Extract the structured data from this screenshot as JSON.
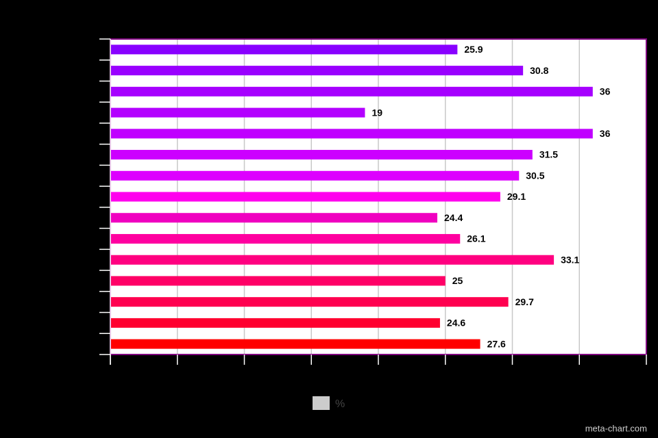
{
  "chart_data": {
    "type": "bar",
    "orientation": "horizontal",
    "categories": [
      null,
      null,
      null,
      null,
      null,
      null,
      null,
      null,
      null,
      null,
      null,
      null,
      null,
      null,
      null
    ],
    "series": [
      {
        "name": "%",
        "legend_color": "#cccccc",
        "values": [
          25.9,
          30.8,
          36,
          19,
          36,
          31.5,
          30.5,
          29.1,
          24.4,
          26.1,
          33.1,
          25,
          29.7,
          24.6,
          27.6
        ],
        "colors": [
          "#8800ff",
          "#9900ff",
          "#a600ff",
          "#b300ff",
          "#c000ff",
          "#cc00ff",
          "#dd00ff",
          "#ff00ee",
          "#f000c0",
          "#ff00a0",
          "#ff0080",
          "#ff0066",
          "#ff0050",
          "#ff0030",
          "#ff0000"
        ]
      }
    ],
    "xlim": [
      0,
      40
    ],
    "xticks": [
      0,
      5,
      10,
      15,
      20,
      25,
      30,
      35,
      40
    ],
    "grid": true,
    "legend": "bottom",
    "watermark": "meta-chart.com"
  }
}
